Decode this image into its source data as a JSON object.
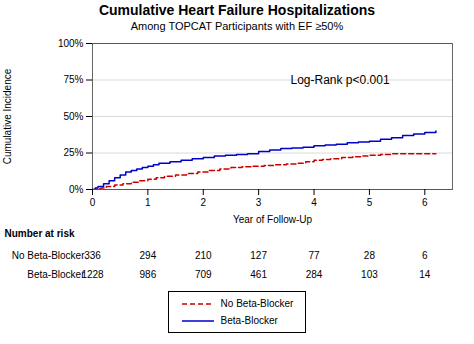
{
  "chart_data": {
    "type": "line",
    "title": "Cumulative Heart Failure Hospitalizations",
    "subtitle": "Among TOPCAT Participants with EF ≥50%",
    "xlabel": "Year of Follow-Up",
    "ylabel": "Cumulative Incidence",
    "annotations": [
      {
        "text": "Log-Rank p<0.001"
      }
    ],
    "xlim": [
      0,
      6.5
    ],
    "xticks": [
      0,
      1,
      2,
      3,
      4,
      5,
      6
    ],
    "ylim": [
      0,
      1.0
    ],
    "yticks": [
      {
        "value": 0,
        "label": "0%"
      },
      {
        "value": 0.25,
        "label": "25%"
      },
      {
        "value": 0.5,
        "label": "50%"
      },
      {
        "value": 0.75,
        "label": "75%"
      },
      {
        "value": 1.0,
        "label": "100%"
      }
    ],
    "grid": true,
    "legend": "bottom",
    "series": [
      {
        "name": "No Beta-Blocker",
        "color": "#cc0000",
        "line_style": "dashed",
        "x": [
          0,
          0.05,
          0.15,
          0.25,
          0.4,
          0.55,
          0.7,
          0.85,
          1.0,
          1.15,
          1.3,
          1.5,
          1.7,
          1.9,
          2.1,
          2.3,
          2.5,
          2.7,
          2.9,
          3.1,
          3.3,
          3.5,
          3.7,
          3.85,
          4.0,
          4.15,
          4.3,
          4.5,
          4.7,
          4.85,
          5.0,
          5.2,
          5.4,
          5.6,
          5.8,
          6.0,
          6.2
        ],
        "values": [
          0,
          0.005,
          0.01,
          0.02,
          0.03,
          0.04,
          0.05,
          0.06,
          0.07,
          0.08,
          0.09,
          0.1,
          0.11,
          0.12,
          0.13,
          0.14,
          0.15,
          0.155,
          0.16,
          0.165,
          0.17,
          0.175,
          0.18,
          0.19,
          0.2,
          0.205,
          0.21,
          0.22,
          0.225,
          0.23,
          0.235,
          0.24,
          0.245,
          0.245,
          0.245,
          0.245,
          0.245
        ]
      },
      {
        "name": "Beta-Blocker",
        "color": "#0000cc",
        "line_style": "solid",
        "x": [
          0,
          0.05,
          0.1,
          0.2,
          0.3,
          0.4,
          0.5,
          0.6,
          0.7,
          0.8,
          0.9,
          1.0,
          1.1,
          1.2,
          1.4,
          1.6,
          1.8,
          2.0,
          2.2,
          2.4,
          2.6,
          2.8,
          3.0,
          3.2,
          3.4,
          3.6,
          3.8,
          4.0,
          4.2,
          4.4,
          4.6,
          4.8,
          5.0,
          5.2,
          5.4,
          5.6,
          5.8,
          6.0,
          6.2
        ],
        "values": [
          0,
          0.01,
          0.02,
          0.04,
          0.06,
          0.08,
          0.1,
          0.12,
          0.13,
          0.14,
          0.15,
          0.16,
          0.17,
          0.18,
          0.19,
          0.2,
          0.21,
          0.22,
          0.23,
          0.235,
          0.24,
          0.245,
          0.26,
          0.27,
          0.28,
          0.285,
          0.29,
          0.3,
          0.305,
          0.31,
          0.32,
          0.325,
          0.33,
          0.345,
          0.355,
          0.37,
          0.38,
          0.39,
          0.4
        ]
      }
    ],
    "risk_table": {
      "title": "Number at risk",
      "times": [
        0,
        1,
        2,
        3,
        4,
        5,
        6
      ],
      "rows": [
        {
          "name": "No Beta-Blocker",
          "values": [
            336,
            294,
            210,
            127,
            77,
            28,
            6
          ]
        },
        {
          "name": "Beta-Blocker",
          "values": [
            1228,
            986,
            709,
            461,
            284,
            103,
            14
          ]
        }
      ]
    }
  }
}
